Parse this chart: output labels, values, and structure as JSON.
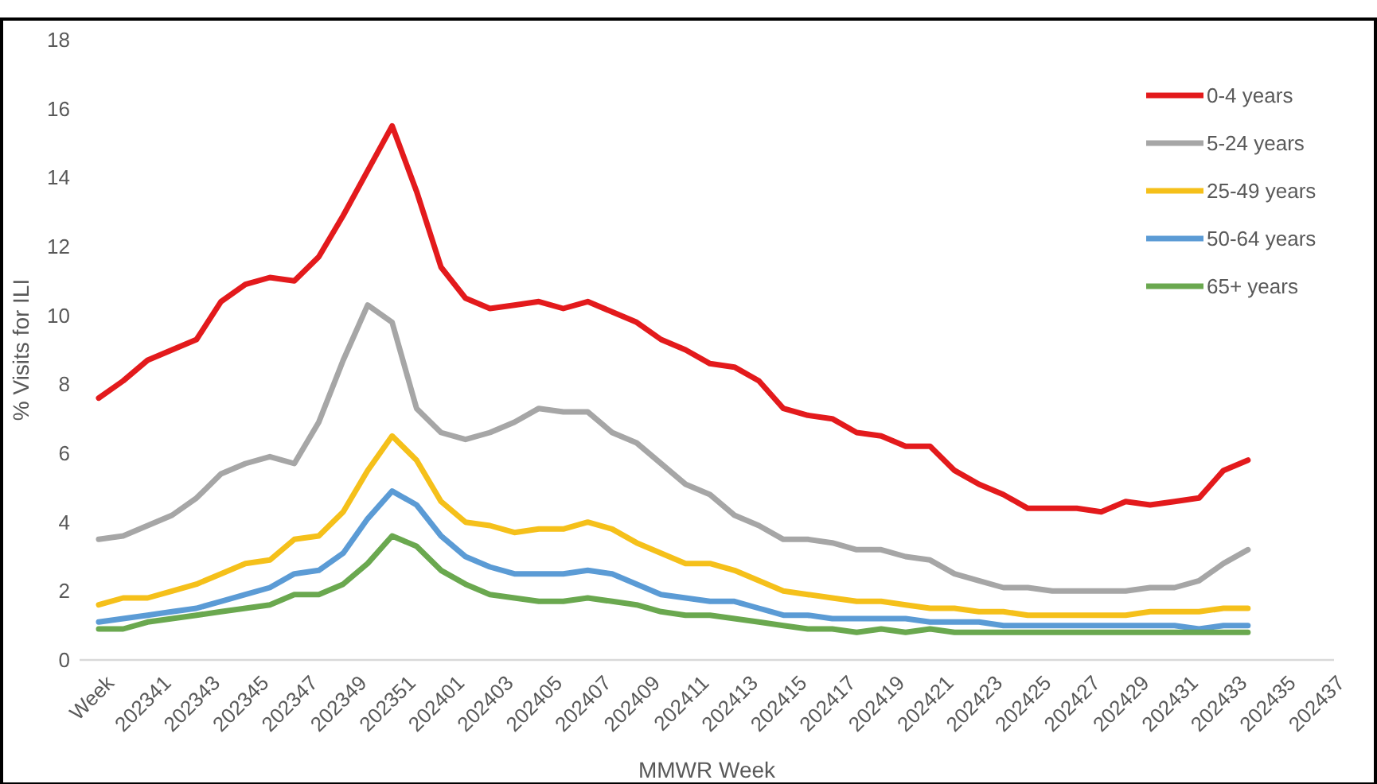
{
  "chart_data": {
    "type": "line",
    "xlabel": "MMWR Week",
    "ylabel": "% Visits for ILI",
    "categories": [
      "Week",
      null,
      "202341",
      null,
      "202343",
      null,
      "202345",
      null,
      "202347",
      null,
      "202349",
      null,
      "202351",
      null,
      "202401",
      null,
      "202403",
      null,
      "202405",
      null,
      "202407",
      null,
      "202409",
      null,
      "202411",
      null,
      "202413",
      null,
      "202415",
      null,
      "202417",
      null,
      "202419",
      null,
      "202421",
      null,
      "202423",
      null,
      "202425",
      null,
      "202427",
      null,
      "202429",
      null,
      "202431",
      null,
      "202433",
      null,
      "202435",
      null,
      "202437"
    ],
    "series": [
      {
        "name": "0-4 years",
        "color": "#e31a1c",
        "values": [
          7.6,
          8.1,
          8.7,
          9.0,
          9.3,
          10.4,
          10.9,
          11.1,
          11.0,
          11.7,
          12.9,
          14.2,
          15.5,
          13.6,
          11.4,
          10.5,
          10.2,
          10.3,
          10.4,
          10.2,
          10.4,
          10.1,
          9.8,
          9.3,
          9.0,
          8.6,
          8.5,
          8.1,
          7.3,
          7.1,
          7.0,
          6.6,
          6.5,
          6.2,
          6.2,
          5.5,
          5.1,
          4.8,
          4.4,
          4.4,
          4.4,
          4.3,
          4.6,
          4.5,
          4.6,
          4.7,
          5.5,
          5.8,
          null,
          null,
          null
        ]
      },
      {
        "name": "5-24 years",
        "color": "#a6a6a6",
        "values": [
          3.5,
          3.6,
          3.9,
          4.2,
          4.7,
          5.4,
          5.7,
          5.9,
          5.7,
          6.9,
          8.7,
          10.3,
          9.8,
          7.3,
          6.6,
          6.4,
          6.6,
          6.9,
          7.3,
          7.2,
          7.2,
          6.6,
          6.3,
          5.7,
          5.1,
          4.8,
          4.2,
          3.9,
          3.5,
          3.5,
          3.4,
          3.2,
          3.2,
          3.0,
          2.9,
          2.5,
          2.3,
          2.1,
          2.1,
          2.0,
          2.0,
          2.0,
          2.0,
          2.1,
          2.1,
          2.3,
          2.8,
          3.2,
          null,
          null,
          null
        ]
      },
      {
        "name": "25-49 years",
        "color": "#f5c01a",
        "values": [
          1.6,
          1.8,
          1.8,
          2.0,
          2.2,
          2.5,
          2.8,
          2.9,
          3.5,
          3.6,
          4.3,
          5.5,
          6.5,
          5.8,
          4.6,
          4.0,
          3.9,
          3.7,
          3.8,
          3.8,
          4.0,
          3.8,
          3.4,
          3.1,
          2.8,
          2.8,
          2.6,
          2.3,
          2.0,
          1.9,
          1.8,
          1.7,
          1.7,
          1.6,
          1.5,
          1.5,
          1.4,
          1.4,
          1.3,
          1.3,
          1.3,
          1.3,
          1.3,
          1.4,
          1.4,
          1.4,
          1.5,
          1.5,
          null,
          null,
          null
        ]
      },
      {
        "name": "50-64 years",
        "color": "#5b9bd5",
        "values": [
          1.1,
          1.2,
          1.3,
          1.4,
          1.5,
          1.7,
          1.9,
          2.1,
          2.5,
          2.6,
          3.1,
          4.1,
          4.9,
          4.5,
          3.6,
          3.0,
          2.7,
          2.5,
          2.5,
          2.5,
          2.6,
          2.5,
          2.2,
          1.9,
          1.8,
          1.7,
          1.7,
          1.5,
          1.3,
          1.3,
          1.2,
          1.2,
          1.2,
          1.2,
          1.1,
          1.1,
          1.1,
          1.0,
          1.0,
          1.0,
          1.0,
          1.0,
          1.0,
          1.0,
          1.0,
          0.9,
          1.0,
          1.0,
          null,
          null,
          null
        ]
      },
      {
        "name": "65+ years",
        "color": "#6aa84f",
        "values": [
          0.9,
          0.9,
          1.1,
          1.2,
          1.3,
          1.4,
          1.5,
          1.6,
          1.9,
          1.9,
          2.2,
          2.8,
          3.6,
          3.3,
          2.6,
          2.2,
          1.9,
          1.8,
          1.7,
          1.7,
          1.8,
          1.7,
          1.6,
          1.4,
          1.3,
          1.3,
          1.2,
          1.1,
          1.0,
          0.9,
          0.9,
          0.8,
          0.9,
          0.8,
          0.9,
          0.8,
          0.8,
          0.8,
          0.8,
          0.8,
          0.8,
          0.8,
          0.8,
          0.8,
          0.8,
          0.8,
          0.8,
          0.8,
          null,
          null,
          null
        ]
      }
    ],
    "ylim": [
      0,
      18
    ],
    "yticks": [
      0,
      2,
      4,
      6,
      8,
      10,
      12,
      14,
      16,
      18
    ],
    "legend": "top right",
    "marker": "none",
    "line_style": "solid"
  }
}
